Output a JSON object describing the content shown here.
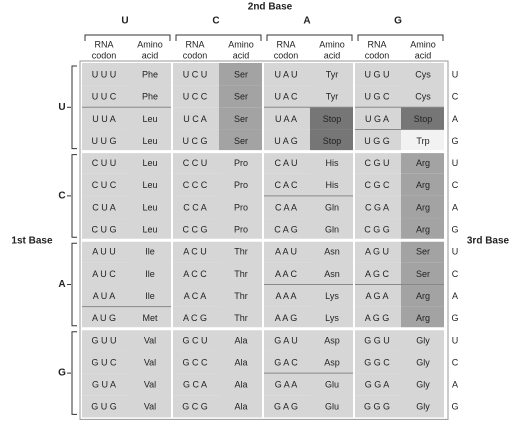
{
  "header": {
    "second_base_title": "2nd Base",
    "second_base": [
      "U",
      "C",
      "A",
      "G"
    ],
    "codon_header": [
      "RNA",
      "codon"
    ],
    "amino_header": [
      "Amino",
      "acid"
    ]
  },
  "first_base_title": "1st Base",
  "first_base": [
    "U",
    "C",
    "A",
    "G"
  ],
  "third_base_title": "3rd Base",
  "third_base": [
    "U",
    "C",
    "A",
    "G"
  ],
  "table": {
    "cell_color": "#d6d6d6",
    "rows": [
      [
        {
          "codon": "U U U",
          "amino": "Phe",
          "color": "#d6d6d6"
        },
        {
          "codon": "U C U",
          "amino": "Ser",
          "color": "#a3a3a3"
        },
        {
          "codon": "U A U",
          "amino": "Tyr",
          "color": "#d6d6d6"
        },
        {
          "codon": "U G U",
          "amino": "Cys",
          "color": "#d6d6d6"
        }
      ],
      [
        {
          "codon": "U U C",
          "amino": "Phe",
          "color": "#d6d6d6"
        },
        {
          "codon": "U C C",
          "amino": "Ser",
          "color": "#a3a3a3"
        },
        {
          "codon": "U A C",
          "amino": "Tyr",
          "color": "#d6d6d6"
        },
        {
          "codon": "U G C",
          "amino": "Cys",
          "color": "#d6d6d6"
        }
      ],
      [
        {
          "codon": "U U A",
          "amino": "Leu",
          "color": "#d6d6d6"
        },
        {
          "codon": "U C A",
          "amino": "Ser",
          "color": "#a3a3a3"
        },
        {
          "codon": "U A A",
          "amino": "Stop",
          "color": "#767676"
        },
        {
          "codon": "U G A",
          "amino": "Stop",
          "color": "#767676"
        }
      ],
      [
        {
          "codon": "U U G",
          "amino": "Leu",
          "color": "#d6d6d6"
        },
        {
          "codon": "U C G",
          "amino": "Ser",
          "color": "#a3a3a3"
        },
        {
          "codon": "U A G",
          "amino": "Stop",
          "color": "#767676"
        },
        {
          "codon": "U G G",
          "amino": "Trp",
          "color": "#f2f2f2"
        }
      ],
      [
        {
          "codon": "C U U",
          "amino": "Leu",
          "color": "#d6d6d6"
        },
        {
          "codon": "C C U",
          "amino": "Pro",
          "color": "#d6d6d6"
        },
        {
          "codon": "C A U",
          "amino": "His",
          "color": "#d6d6d6"
        },
        {
          "codon": "C G U",
          "amino": "Arg",
          "color": "#a3a3a3"
        }
      ],
      [
        {
          "codon": "C U C",
          "amino": "Leu",
          "color": "#d6d6d6"
        },
        {
          "codon": "C C C",
          "amino": "Pro",
          "color": "#d6d6d6"
        },
        {
          "codon": "C A C",
          "amino": "His",
          "color": "#d6d6d6"
        },
        {
          "codon": "C G C",
          "amino": "Arg",
          "color": "#a3a3a3"
        }
      ],
      [
        {
          "codon": "C U A",
          "amino": "Leu",
          "color": "#d6d6d6"
        },
        {
          "codon": "C C A",
          "amino": "Pro",
          "color": "#d6d6d6"
        },
        {
          "codon": "C A A",
          "amino": "Gln",
          "color": "#d6d6d6"
        },
        {
          "codon": "C G A",
          "amino": "Arg",
          "color": "#a3a3a3"
        }
      ],
      [
        {
          "codon": "C U G",
          "amino": "Leu",
          "color": "#d6d6d6"
        },
        {
          "codon": "C C G",
          "amino": "Pro",
          "color": "#d6d6d6"
        },
        {
          "codon": "C A G",
          "amino": "Gln",
          "color": "#d6d6d6"
        },
        {
          "codon": "C G G",
          "amino": "Arg",
          "color": "#a3a3a3"
        }
      ],
      [
        {
          "codon": "A U U",
          "amino": "Ile",
          "color": "#d6d6d6"
        },
        {
          "codon": "A C U",
          "amino": "Thr",
          "color": "#d6d6d6"
        },
        {
          "codon": "A A U",
          "amino": "Asn",
          "color": "#d6d6d6"
        },
        {
          "codon": "A G U",
          "amino": "Ser",
          "color": "#a3a3a3"
        }
      ],
      [
        {
          "codon": "A U C",
          "amino": "Ile",
          "color": "#d6d6d6"
        },
        {
          "codon": "A C C",
          "amino": "Thr",
          "color": "#d6d6d6"
        },
        {
          "codon": "A A C",
          "amino": "Asn",
          "color": "#d6d6d6"
        },
        {
          "codon": "A G C",
          "amino": "Ser",
          "color": "#a3a3a3"
        }
      ],
      [
        {
          "codon": "A U A",
          "amino": "Ile",
          "color": "#d6d6d6"
        },
        {
          "codon": "A C A",
          "amino": "Thr",
          "color": "#d6d6d6"
        },
        {
          "codon": "A A A",
          "amino": "Lys",
          "color": "#d6d6d6"
        },
        {
          "codon": "A G A",
          "amino": "Arg",
          "color": "#a3a3a3"
        }
      ],
      [
        {
          "codon": "A U G",
          "amino": "Met",
          "color": "#d6d6d6"
        },
        {
          "codon": "A C G",
          "amino": "Thr",
          "color": "#d6d6d6"
        },
        {
          "codon": "A A G",
          "amino": "Lys",
          "color": "#d6d6d6"
        },
        {
          "codon": "A G G",
          "amino": "Arg",
          "color": "#a3a3a3"
        }
      ],
      [
        {
          "codon": "G U U",
          "amino": "Val",
          "color": "#d6d6d6"
        },
        {
          "codon": "G C U",
          "amino": "Ala",
          "color": "#d6d6d6"
        },
        {
          "codon": "G A U",
          "amino": "Asp",
          "color": "#d6d6d6"
        },
        {
          "codon": "G G U",
          "amino": "Gly",
          "color": "#d6d6d6"
        }
      ],
      [
        {
          "codon": "G U C",
          "amino": "Val",
          "color": "#d6d6d6"
        },
        {
          "codon": "G C C",
          "amino": "Ala",
          "color": "#d6d6d6"
        },
        {
          "codon": "G A C",
          "amino": "Asp",
          "color": "#d6d6d6"
        },
        {
          "codon": "G G C",
          "amino": "Gly",
          "color": "#d6d6d6"
        }
      ],
      [
        {
          "codon": "G U A",
          "amino": "Val",
          "color": "#d6d6d6"
        },
        {
          "codon": "G C A",
          "amino": "Ala",
          "color": "#d6d6d6"
        },
        {
          "codon": "G A A",
          "amino": "Glu",
          "color": "#d6d6d6"
        },
        {
          "codon": "G G A",
          "amino": "Gly",
          "color": "#d6d6d6"
        }
      ],
      [
        {
          "codon": "G U G",
          "amino": "Val",
          "color": "#d6d6d6"
        },
        {
          "codon": "G C G",
          "amino": "Ala",
          "color": "#d6d6d6"
        },
        {
          "codon": "G A G",
          "amino": "Glu",
          "color": "#d6d6d6"
        },
        {
          "codon": "G G G",
          "amino": "Gly",
          "color": "#d6d6d6"
        }
      ]
    ]
  }
}
